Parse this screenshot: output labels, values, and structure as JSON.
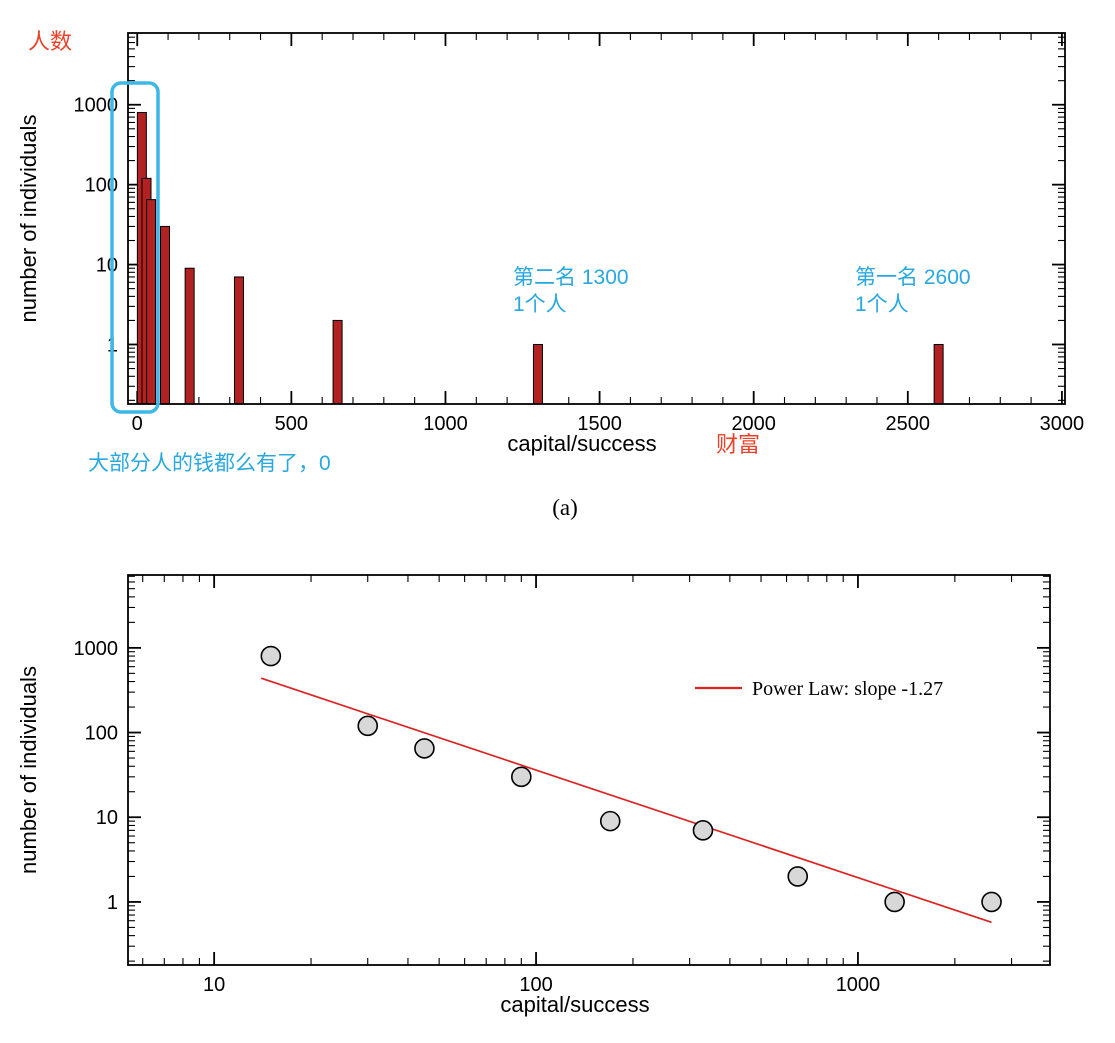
{
  "panel_label": "(a)",
  "annotations": {
    "y_axis_cjk": "人数",
    "x_axis_cjk": "财富",
    "second_place_l1": "第二名 1300",
    "second_place_l2": "1个人",
    "first_place_l1": "第一名 2600",
    "first_place_l2": "1个人",
    "zero_note": "大部分人的钱都么有了，0"
  },
  "colors": {
    "bar_fill": "#b22222",
    "bar_edge": "#000000",
    "highlight_box": "#3db7e8",
    "cyan_text": "#29a8e0",
    "red_text": "#e8432a",
    "fit_line": "#dd2222",
    "point_fill": "#d8d8d8",
    "point_edge": "#000000",
    "frame": "#000000"
  },
  "chart_data": [
    {
      "type": "bar",
      "xlabel": "capital/success",
      "ylabel": "number of individuals",
      "xscale": "linear",
      "yscale": "log",
      "xlim": [
        -30,
        3010
      ],
      "ylim": [
        0.18,
        7900
      ],
      "x_ticks": [
        0,
        500,
        1000,
        1500,
        2000,
        2500,
        3000
      ],
      "x_minor_step": 100,
      "y_ticks": [
        1,
        10,
        100,
        1000
      ],
      "x": [
        15,
        30,
        45,
        90,
        170,
        330,
        650,
        1300,
        2600
      ],
      "values": [
        800,
        120,
        65,
        30,
        9,
        7,
        2,
        1,
        1
      ],
      "grid": false
    },
    {
      "type": "scatter",
      "xlabel": "capital/success",
      "ylabel": "number of individuals",
      "xscale": "log",
      "yscale": "log",
      "xlim": [
        5.4,
        3950
      ],
      "ylim": [
        0.18,
        7250
      ],
      "x_ticks": [
        10,
        100,
        1000
      ],
      "y_ticks": [
        1,
        10,
        100,
        1000
      ],
      "x": [
        15,
        30,
        45,
        90,
        170,
        330,
        650,
        1300,
        2600
      ],
      "y": [
        800,
        120,
        65,
        30,
        9,
        7,
        2,
        1,
        1
      ],
      "fit": {
        "label": "Power Law: slope -1.27",
        "slope": -1.27,
        "amplitude": 12500,
        "x_range": [
          14,
          2600
        ]
      },
      "legend_position": "inside-top-right",
      "grid": false
    }
  ]
}
